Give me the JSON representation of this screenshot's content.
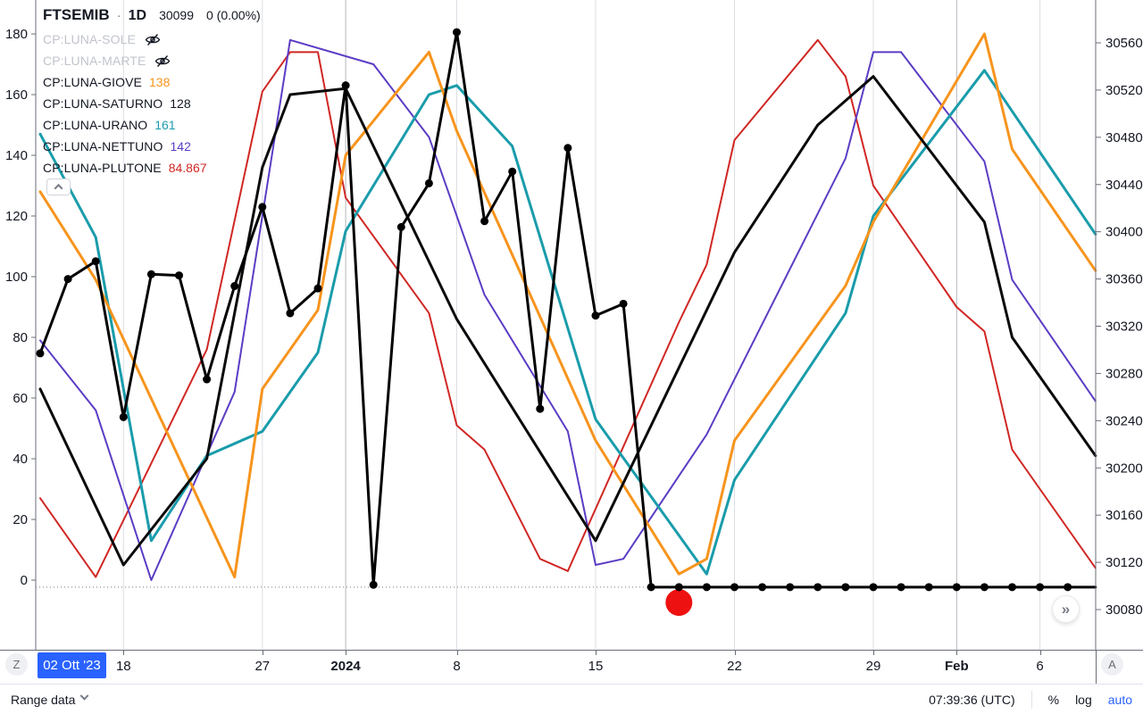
{
  "header": {
    "symbol": "FTSEMIB",
    "separator": "·",
    "interval": "1D",
    "price": "30099",
    "change": "0 (0.00%)"
  },
  "legend": {
    "rows": [
      {
        "label": "CP:LUNA-SOLE",
        "hidden": true,
        "value": "",
        "color": "#c1c4cd"
      },
      {
        "label": "CP:LUNA-MARTE",
        "hidden": true,
        "value": "",
        "color": "#c1c4cd"
      },
      {
        "label": "CP:LUNA-GIOVE",
        "hidden": false,
        "value": "138",
        "color": "#f7941d"
      },
      {
        "label": "CP:LUNA-SATURNO",
        "hidden": false,
        "value": "128",
        "color": "#131722"
      },
      {
        "label": "CP:LUNA-URANO",
        "hidden": false,
        "value": "161",
        "color": "#1a9cab"
      },
      {
        "label": "CP:LUNA-NETTUNO",
        "hidden": false,
        "value": "142",
        "color": "#5b3cc4"
      },
      {
        "label": "CP:LUNA-PLUTONE",
        "hidden": false,
        "value": "84.867",
        "color": "#d02724"
      }
    ]
  },
  "icons": {
    "fast_forward": "»"
  },
  "time_axis": {
    "zoom_badge": "Z",
    "auto_badge": "A",
    "selected_date": "02 Ott '23"
  },
  "bottom_bar": {
    "range_label": "Range data",
    "clock": "07:39:36 (UTC)",
    "percent": "%",
    "log": "log",
    "auto": "auto",
    "accent_color": "#2962ff"
  },
  "chart_data": {
    "type": "line",
    "title": "FTSEMIB 1D with CP:LUNA planetary separation overlays",
    "grid": "vertical-only",
    "legend_position": "top-left",
    "x_axis": {
      "unit": "trading-day index",
      "labels": [
        {
          "day": 3,
          "label": "18",
          "bold": false
        },
        {
          "day": 8,
          "label": "27",
          "bold": false
        },
        {
          "day": 11,
          "label": "2024",
          "bold": true
        },
        {
          "day": 15,
          "label": "8",
          "bold": false
        },
        {
          "day": 20,
          "label": "15",
          "bold": false
        },
        {
          "day": 25,
          "label": "22",
          "bold": false
        },
        {
          "day": 30,
          "label": "29",
          "bold": false
        },
        {
          "day": 33,
          "label": "Feb",
          "bold": true
        },
        {
          "day": 36,
          "label": "6",
          "bold": false
        }
      ]
    },
    "y_axis_left": {
      "min": 0,
      "max": 180,
      "step": 20,
      "ticks": [
        "0",
        "20",
        "40",
        "60",
        "80",
        "100",
        "120",
        "140",
        "160",
        "180"
      ]
    },
    "y_axis_right": {
      "min": 30080,
      "max": 30560,
      "step": 40,
      "ticks": [
        "30080",
        "30120",
        "30160",
        "30200",
        "30240",
        "30280",
        "30320",
        "30360",
        "30400",
        "30440",
        "30480",
        "30520",
        "30560"
      ]
    },
    "series": [
      {
        "name": "CP:LUNA-PLUTONE",
        "axis": "left",
        "color": "#d02724",
        "width": 2,
        "markers": false,
        "points": [
          [
            0,
            27
          ],
          [
            2,
            1
          ],
          [
            6,
            76
          ],
          [
            8,
            161
          ],
          [
            9,
            174
          ],
          [
            10,
            174
          ],
          [
            11,
            126
          ],
          [
            14,
            88
          ],
          [
            15,
            51
          ],
          [
            16,
            43
          ],
          [
            18,
            7
          ],
          [
            19,
            3
          ],
          [
            23,
            85
          ],
          [
            24,
            104
          ],
          [
            25,
            145
          ],
          [
            28,
            178
          ],
          [
            29,
            166
          ],
          [
            30,
            130
          ],
          [
            33,
            90
          ],
          [
            34,
            82
          ],
          [
            35,
            43
          ],
          [
            38,
            4
          ]
        ]
      },
      {
        "name": "CP:LUNA-NETTUNO",
        "axis": "left",
        "color": "#5b3cc4",
        "width": 2,
        "markers": false,
        "points": [
          [
            0,
            79
          ],
          [
            2,
            56
          ],
          [
            4,
            0
          ],
          [
            7,
            62
          ],
          [
            9,
            178
          ],
          [
            12,
            170
          ],
          [
            14,
            146
          ],
          [
            16,
            94
          ],
          [
            19,
            49
          ],
          [
            20,
            5
          ],
          [
            21,
            7
          ],
          [
            24,
            48
          ],
          [
            29,
            139
          ],
          [
            30,
            174
          ],
          [
            31,
            174
          ],
          [
            34,
            138
          ],
          [
            35,
            99
          ],
          [
            38,
            59
          ]
        ]
      },
      {
        "name": "CP:LUNA-URANO",
        "axis": "left",
        "color": "#1a9cab",
        "width": 3,
        "markers": false,
        "points": [
          [
            0,
            147
          ],
          [
            2,
            113
          ],
          [
            4,
            13
          ],
          [
            6,
            41
          ],
          [
            8,
            49
          ],
          [
            10,
            75
          ],
          [
            11,
            115
          ],
          [
            14,
            160
          ],
          [
            15,
            163
          ],
          [
            17,
            143
          ],
          [
            20,
            53
          ],
          [
            24,
            2
          ],
          [
            25,
            33
          ],
          [
            29,
            88
          ],
          [
            30,
            120
          ],
          [
            34,
            168
          ],
          [
            38,
            114
          ]
        ]
      },
      {
        "name": "CP:LUNA-GIOVE",
        "axis": "left",
        "color": "#f7941d",
        "width": 3,
        "markers": false,
        "points": [
          [
            0,
            128
          ],
          [
            2,
            99
          ],
          [
            7,
            1
          ],
          [
            8,
            63
          ],
          [
            10,
            89
          ],
          [
            11,
            140
          ],
          [
            14,
            174
          ],
          [
            15,
            148
          ],
          [
            20,
            46
          ],
          [
            23,
            2
          ],
          [
            24,
            7
          ],
          [
            25,
            46
          ],
          [
            29,
            97
          ],
          [
            30,
            118
          ],
          [
            34,
            180
          ],
          [
            35,
            142
          ],
          [
            38,
            102
          ]
        ]
      },
      {
        "name": "CP:LUNA-SATURNO",
        "axis": "left",
        "color": "#0b0b0b",
        "width": 3,
        "markers": false,
        "points": [
          [
            0,
            63
          ],
          [
            3,
            5
          ],
          [
            6,
            40
          ],
          [
            8,
            136
          ],
          [
            9,
            160
          ],
          [
            11,
            162
          ],
          [
            15,
            86
          ],
          [
            20,
            13
          ],
          [
            25,
            108
          ],
          [
            28,
            150
          ],
          [
            30,
            166
          ],
          [
            34,
            118
          ],
          [
            35,
            80
          ],
          [
            38,
            41
          ]
        ]
      },
      {
        "name": "FTSEMIB",
        "axis": "right",
        "color": "#000000",
        "width": 3,
        "markers": true,
        "marker_radius": 4.5,
        "points": [
          [
            0,
            30297
          ],
          [
            1,
            30360
          ],
          [
            2,
            30375
          ],
          [
            3,
            30243
          ],
          [
            4,
            30364
          ],
          [
            5,
            30363
          ],
          [
            6,
            30275
          ],
          [
            7,
            30354
          ],
          [
            8,
            30421
          ],
          [
            9,
            30331
          ],
          [
            10,
            30352
          ],
          [
            11,
            30524
          ],
          [
            12,
            30101
          ],
          [
            13,
            30404
          ],
          [
            14,
            30441
          ],
          [
            15,
            30569
          ],
          [
            16,
            30409
          ],
          [
            17,
            30451
          ],
          [
            18,
            30250
          ],
          [
            19,
            30471
          ],
          [
            20,
            30329
          ],
          [
            21,
            30339
          ],
          [
            22,
            30099
          ],
          [
            23,
            30099
          ],
          [
            24,
            30099
          ],
          [
            25,
            30099
          ],
          [
            26,
            30099
          ],
          [
            27,
            30099
          ],
          [
            28,
            30099
          ],
          [
            29,
            30099
          ],
          [
            30,
            30099
          ],
          [
            31,
            30099
          ],
          [
            32,
            30099
          ],
          [
            33,
            30099
          ],
          [
            34,
            30099
          ],
          [
            35,
            30099
          ],
          [
            36,
            30099
          ],
          [
            37,
            30099
          ],
          [
            38,
            30099
          ]
        ]
      }
    ],
    "hidden_series": [
      "CP:LUNA-SOLE",
      "CP:LUNA-MARTE"
    ],
    "annotations": {
      "previous_close_dotted_line": {
        "axis": "right",
        "price": 30099
      },
      "red_dot": {
        "day": 23,
        "price": 30086,
        "radius": 15,
        "color": "#ee1111"
      }
    },
    "colors": {
      "gridline_minor": "#dcdee3",
      "gridline_major": "#b3b6bd",
      "axis_border": "#6a6d78",
      "dotted_line": "#777777"
    }
  }
}
